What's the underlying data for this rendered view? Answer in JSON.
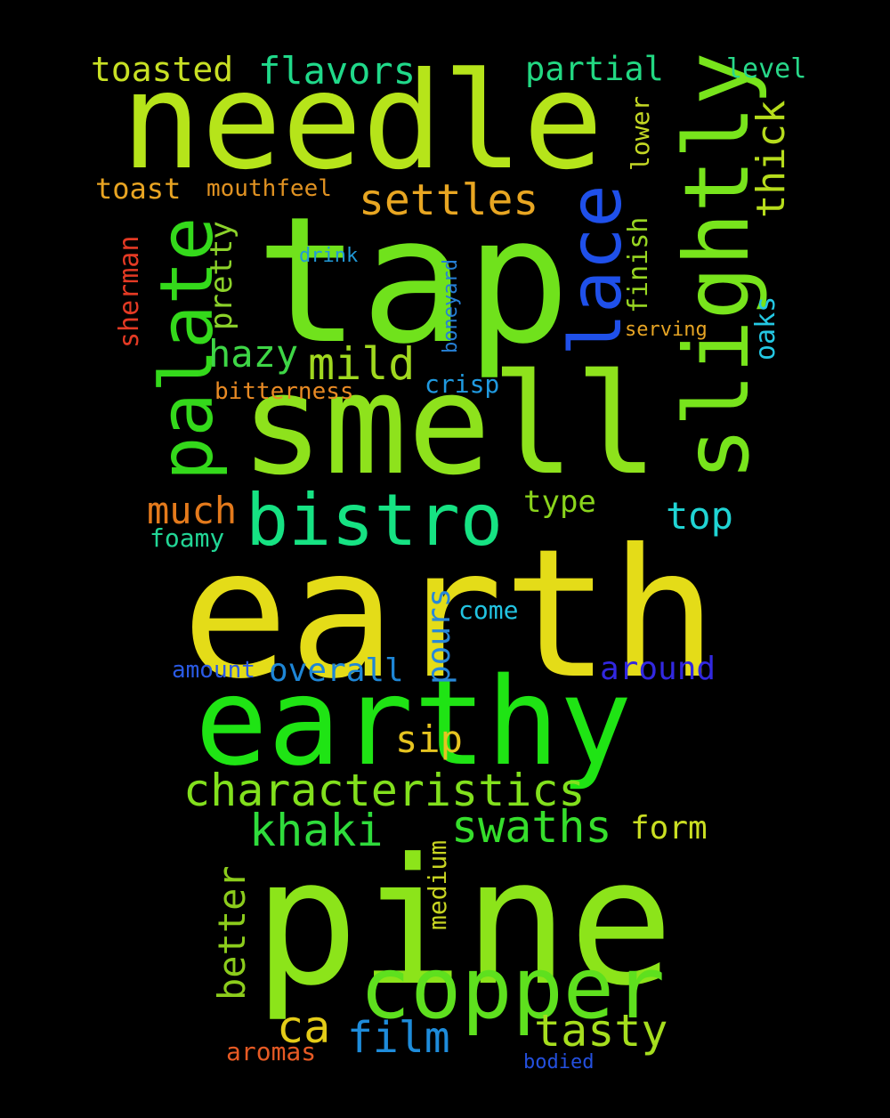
{
  "words": [
    {
      "text": "earth",
      "color": "#e4dc18"
    },
    {
      "text": "tap",
      "color": "#70e21c"
    },
    {
      "text": "pine",
      "color": "#8ce41a"
    },
    {
      "text": "needle",
      "color": "#b6e41a"
    },
    {
      "text": "smell",
      "color": "#8ee21c"
    },
    {
      "text": "earthy",
      "color": "#1fe414"
    },
    {
      "text": "copper",
      "color": "#5ee01e"
    },
    {
      "text": "slightly",
      "color": "#78e41c"
    },
    {
      "text": "bistro",
      "color": "#16e283"
    },
    {
      "text": "palate",
      "color": "#34d91b"
    },
    {
      "text": "lace",
      "color": "#1f50ea"
    },
    {
      "text": "characteristics",
      "color": "#82e01d"
    },
    {
      "text": "tasty",
      "color": "#a6de1e"
    },
    {
      "text": "swaths",
      "color": "#36de2c"
    },
    {
      "text": "khaki",
      "color": "#2fdc3c"
    },
    {
      "text": "settles",
      "color": "#e8a622"
    },
    {
      "text": "mild",
      "color": "#a0d81f"
    },
    {
      "text": "flavors",
      "color": "#20d98a"
    },
    {
      "text": "film",
      "color": "#1e8cdb"
    },
    {
      "text": "ca",
      "color": "#e4cc18"
    },
    {
      "text": "much",
      "color": "#e47a1c"
    },
    {
      "text": "top",
      "color": "#20d4d4"
    },
    {
      "text": "thick",
      "color": "#b6dc1c"
    },
    {
      "text": "partial",
      "color": "#22d882"
    },
    {
      "text": "toasted",
      "color": "#c8e024"
    },
    {
      "text": "hazy",
      "color": "#3ed646"
    },
    {
      "text": "sip",
      "color": "#e6c420"
    },
    {
      "text": "better",
      "color": "#8ccc1c"
    },
    {
      "text": "around",
      "color": "#3228e0"
    },
    {
      "text": "overall",
      "color": "#1e86d6"
    },
    {
      "text": "pours",
      "color": "#2888d8"
    },
    {
      "text": "form",
      "color": "#cade22"
    },
    {
      "text": "type",
      "color": "#8ad41c"
    },
    {
      "text": "pretty",
      "color": "#8cd22a"
    },
    {
      "text": "level",
      "color": "#28d88a"
    },
    {
      "text": "toast",
      "color": "#e8a422"
    },
    {
      "text": "finish",
      "color": "#98d622"
    },
    {
      "text": "lower",
      "color": "#c4d824"
    },
    {
      "text": "oaks",
      "color": "#24c8e4"
    },
    {
      "text": "sherman",
      "color": "#e43a24"
    },
    {
      "text": "bitterness",
      "color": "#e88a24"
    },
    {
      "text": "crisp",
      "color": "#209ae0"
    },
    {
      "text": "mouthfeel",
      "color": "#e09222"
    },
    {
      "text": "come",
      "color": "#22c4e2"
    },
    {
      "text": "foamy",
      "color": "#22d696"
    },
    {
      "text": "medium",
      "color": "#c8d422"
    },
    {
      "text": "amount",
      "color": "#2a5ae4"
    },
    {
      "text": "aromas",
      "color": "#e65a24"
    },
    {
      "text": "drink",
      "color": "#229ad8"
    },
    {
      "text": "boneyard",
      "color": "#2680d6"
    },
    {
      "text": "serving",
      "color": "#e6a424"
    },
    {
      "text": "bodied",
      "color": "#2450de"
    }
  ]
}
